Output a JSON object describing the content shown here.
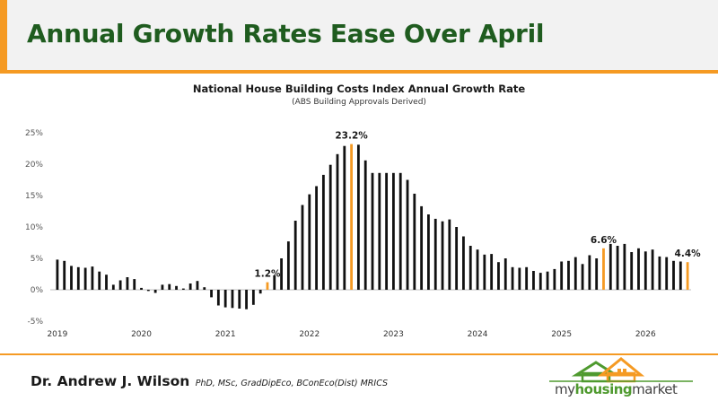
{
  "headline": "Annual Growth Rates Ease Over April",
  "author": {
    "name": "Dr. Andrew J. Wilson",
    "credentials": "PhD, MSc, GradDipEco, BConEco(Dist) MRICS"
  },
  "logo": {
    "part1": "my",
    "part2": "housing",
    "part3": "market"
  },
  "colors": {
    "accent": "#f59a23",
    "headline": "#1f5c1f",
    "bar": "#111111",
    "highlight": "#f59a23",
    "logo_green": "#4f9a2f"
  },
  "chart_data": {
    "type": "bar",
    "title": "National House Building Costs Index Annual Growth Rate",
    "subtitle": "(ABS Building Approvals Derived)",
    "xlabel": "",
    "ylabel": "",
    "ylim": [
      -5,
      25
    ],
    "y_ticks": [
      "-5%",
      "0%",
      "5%",
      "10%",
      "15%",
      "20%",
      "25%"
    ],
    "x_ticks": [
      "2019",
      "2020",
      "2021",
      "2022",
      "2023",
      "2024",
      "2025",
      "2026"
    ],
    "grid": false,
    "legend": "none",
    "x_start": "2019-01",
    "frequency": "monthly",
    "values": [
      4.8,
      4.6,
      3.8,
      3.6,
      3.5,
      3.7,
      2.9,
      2.4,
      0.8,
      1.5,
      2.0,
      1.7,
      0.3,
      -0.2,
      -0.5,
      0.8,
      0.9,
      0.6,
      0.2,
      1.0,
      1.4,
      0.4,
      -1.2,
      -2.5,
      -2.8,
      -2.9,
      -3.0,
      -3.1,
      -2.4,
      -0.6,
      1.2,
      2.3,
      5.0,
      7.7,
      11.0,
      13.5,
      15.2,
      16.5,
      18.3,
      19.9,
      21.6,
      22.9,
      23.2,
      23.1,
      20.6,
      18.6,
      18.6,
      18.6,
      18.6,
      18.6,
      17.5,
      15.3,
      13.3,
      12.0,
      11.3,
      10.9,
      11.2,
      10.0,
      8.5,
      7.0,
      6.4,
      5.6,
      5.7,
      4.4,
      5.0,
      3.6,
      3.5,
      3.6,
      3.0,
      2.7,
      2.9,
      3.3,
      4.5,
      4.6,
      5.2,
      4.1,
      5.5,
      5.0,
      6.6,
      7.3,
      7.0,
      7.3,
      6.0,
      6.6,
      6.1,
      6.4,
      5.3,
      5.2,
      4.6,
      4.5,
      4.4
    ],
    "highlighted": [
      {
        "index": 30,
        "label": "1.2%"
      },
      {
        "index": 42,
        "label": "23.2%"
      },
      {
        "index": 78,
        "label": "6.6%"
      },
      {
        "index": 90,
        "label": "4.4%"
      }
    ]
  }
}
